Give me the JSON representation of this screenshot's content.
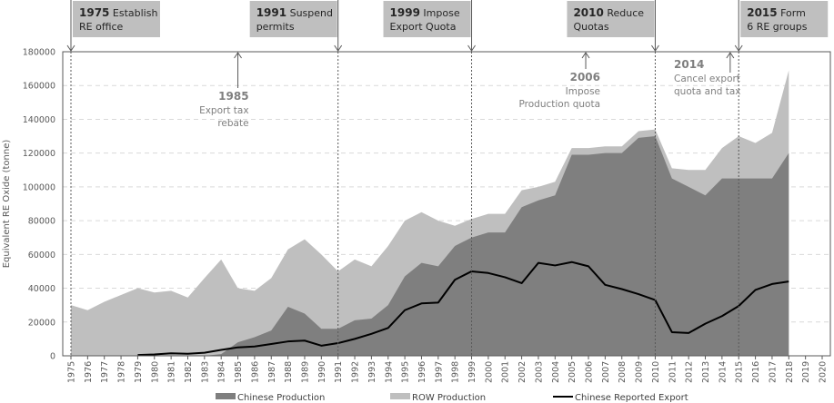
{
  "chart_data": {
    "type": "area",
    "title": "",
    "xlabel": "",
    "ylabel": "Equivalent RE Oxide (tonne)",
    "xlim": [
      1975,
      2020
    ],
    "ylim": [
      0,
      180000
    ],
    "y_ticks": [
      "0",
      "20000",
      "40000",
      "60000",
      "80000",
      "100000",
      "120000",
      "140000",
      "160000",
      "180000"
    ],
    "x_ticks": [
      "1975",
      "1976",
      "1977",
      "1978",
      "1979",
      "1980",
      "1981",
      "1982",
      "1983",
      "1984",
      "1985",
      "1986",
      "1987",
      "1988",
      "1989",
      "1990",
      "1991",
      "1992",
      "1993",
      "1994",
      "1995",
      "1996",
      "1997",
      "1998",
      "1999",
      "2000",
      "2001",
      "2002",
      "2003",
      "2004",
      "2005",
      "2006",
      "2007",
      "2008",
      "2009",
      "2010",
      "2011",
      "2012",
      "2013",
      "2014",
      "2015",
      "2016",
      "2017",
      "2018",
      "2019",
      "2020"
    ],
    "grid": "horizontal-dashed",
    "legend_position": "bottom",
    "colors": {
      "chinese_production": "#7f7f7f",
      "row_production": "#bfbfbf",
      "export_line": "#000000"
    },
    "years": [
      1975,
      1976,
      1977,
      1978,
      1979,
      1980,
      1981,
      1982,
      1983,
      1984,
      1985,
      1986,
      1987,
      1988,
      1989,
      1990,
      1991,
      1992,
      1993,
      1994,
      1995,
      1996,
      1997,
      1998,
      1999,
      2000,
      2001,
      2002,
      2003,
      2004,
      2005,
      2006,
      2007,
      2008,
      2009,
      2010,
      2011,
      2012,
      2013,
      2014,
      2015,
      2016,
      2017,
      2018
    ],
    "series": [
      {
        "name": "Chinese Production",
        "kind": "stacked-area",
        "values": [
          0,
          0,
          0,
          0,
          0,
          0,
          0,
          0,
          0,
          1000,
          8000,
          11000,
          15000,
          29000,
          25000,
          16000,
          16000,
          21000,
          22000,
          30000,
          47000,
          55000,
          53000,
          65000,
          70000,
          73000,
          73000,
          88000,
          92000,
          95000,
          119000,
          119000,
          120000,
          120000,
          129000,
          130000,
          105000,
          100000,
          95000,
          105000,
          105000,
          105000,
          105000,
          120000
        ]
      },
      {
        "name": "ROW Production",
        "kind": "stacked-area-total",
        "values": [
          30000,
          27000,
          32000,
          36000,
          40000,
          37500,
          38500,
          34500,
          46000,
          57000,
          40000,
          38500,
          46000,
          63000,
          69000,
          60000,
          50000,
          57000,
          53000,
          65000,
          80000,
          85000,
          80000,
          77000,
          81000,
          84000,
          84000,
          98000,
          100000,
          103000,
          123000,
          123000,
          124000,
          124000,
          133000,
          134000,
          111000,
          110000,
          110000,
          123000,
          130000,
          126000,
          132000,
          169000
        ]
      },
      {
        "name": "Chinese Reported Export",
        "kind": "line",
        "years": [
          1979,
          1980,
          1981,
          1982,
          1983,
          1984,
          1985,
          1986,
          1987,
          1988,
          1989,
          1990,
          1991,
          1992,
          1993,
          1994,
          1995,
          1996,
          1997,
          1998,
          1999,
          2000,
          2001,
          2002,
          2003,
          2004,
          2005,
          2006,
          2007,
          2008,
          2009,
          2010,
          2011,
          2012,
          2013,
          2014,
          2015,
          2016,
          2017,
          2018
        ],
        "values": [
          500,
          800,
          1500,
          1200,
          1800,
          3500,
          5000,
          5500,
          7000,
          8500,
          9000,
          6000,
          7500,
          10000,
          13000,
          16500,
          27000,
          31000,
          31500,
          45000,
          50000,
          49000,
          46500,
          43000,
          55000,
          53500,
          55500,
          53000,
          42000,
          39500,
          36500,
          33000,
          14000,
          13500,
          19000,
          23500,
          29500,
          39000,
          42500,
          44000
        ]
      }
    ],
    "events_boxed": [
      {
        "year": 1975,
        "year_label": "1975",
        "line1": "Establish",
        "line2": "RE office"
      },
      {
        "year": 1991,
        "year_label": "1991",
        "line1": "Suspend",
        "line2": "permits"
      },
      {
        "year": 1999,
        "year_label": "1999",
        "line1": "Impose",
        "line2": "Export Quota"
      },
      {
        "year": 2010,
        "year_label": "2010",
        "line1": "Reduce",
        "line2": "Quotas"
      },
      {
        "year": 2015,
        "year_label": "2015",
        "line1": "Form",
        "line2": "6 RE groups"
      }
    ],
    "events_inline": [
      {
        "year": 1985,
        "year_label": "1985",
        "lines": [
          "Export tax",
          "rebate"
        ]
      },
      {
        "year": 2006,
        "year_label": "2006",
        "lines": [
          "Impose",
          "Production quota"
        ]
      },
      {
        "year": 2014,
        "year_label": "2014",
        "lines": [
          "Cancel export",
          "quota and tax"
        ]
      }
    ],
    "legend": [
      {
        "label": "Chinese Production",
        "kind": "area"
      },
      {
        "label": "ROW Production",
        "kind": "area"
      },
      {
        "label": "Chinese Reported Export",
        "kind": "line"
      }
    ]
  }
}
